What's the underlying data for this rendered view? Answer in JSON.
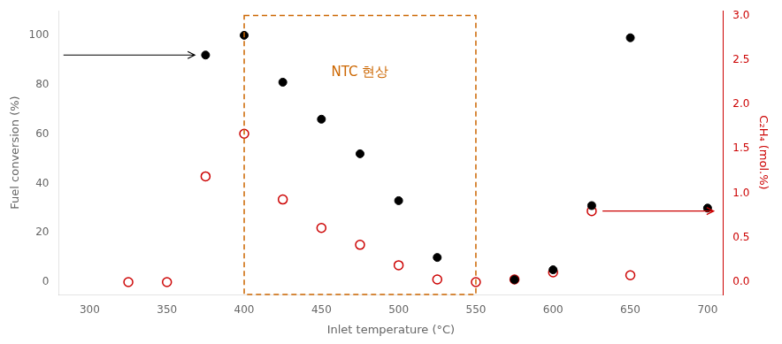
{
  "chart_data": {
    "type": "scatter",
    "xlabel": "Inlet temperature (°C)",
    "ylabel": "Fuel conversion (%)",
    "y2label": "C₂H₄ (mol.%)",
    "y2label_color": "#cc0000",
    "xlim": [
      280,
      710
    ],
    "ylim": [
      -5,
      110
    ],
    "y2lim": [
      -0.139,
      3.055
    ],
    "xticks": [
      300,
      350,
      400,
      450,
      500,
      550,
      600,
      650,
      700
    ],
    "yticks": [
      0,
      20,
      40,
      60,
      80,
      100
    ],
    "y2ticks": [
      {
        "value": 0.0,
        "label": "0.0"
      },
      0.5,
      {
        "value": 1.0,
        "label": "1.0"
      },
      1.5,
      {
        "value": 2.0,
        "label": "2.0"
      },
      2.5,
      {
        "value": 3.0,
        "label": "3.0"
      }
    ],
    "grid": false,
    "series": [
      {
        "color": "#000000",
        "marker": "filled_circle",
        "x": [
          375,
          400,
          425,
          450,
          475,
          500,
          525,
          575,
          600,
          625,
          650,
          700
        ],
        "values": [
          92,
          100,
          81,
          66,
          52,
          33,
          10,
          1,
          5,
          31,
          99,
          30
        ]
      },
      {
        "color": "#cc0000",
        "marker": "open_circle",
        "axis": "y2",
        "x": [
          325,
          350,
          375,
          400,
          425,
          450,
          475,
          500,
          525,
          550,
          575,
          600,
          625,
          650
        ],
        "values": [
          0.0,
          0.0,
          1.19,
          1.67,
          0.93,
          0.61,
          0.42,
          0.19,
          0.03,
          0.0,
          0.03,
          0.11,
          0.8,
          0.077
        ]
      }
    ],
    "annotations": [
      {
        "type": "box",
        "x": [
          400,
          550
        ],
        "y": [
          -5,
          108
        ],
        "color": "#cc6600",
        "line_style": "dashed"
      },
      {
        "type": "text",
        "text": "NTC 현상",
        "x": 475,
        "y": 85,
        "color": "#cc6600"
      },
      {
        "type": "arrow",
        "x": [
          283,
          368
        ],
        "y": 92,
        "color": "#000000"
      },
      {
        "type": "arrow",
        "x": [
          632,
          704
        ],
        "y": 0.8,
        "color": "#cc0000",
        "axis": "y2"
      }
    ]
  }
}
